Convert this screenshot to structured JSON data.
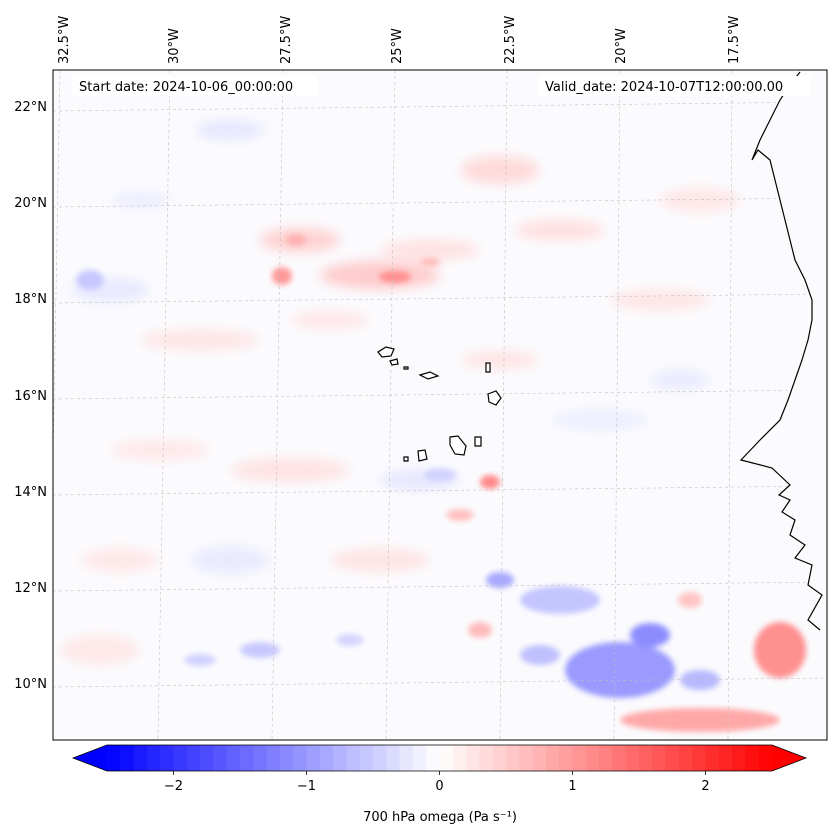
{
  "map": {
    "annotations": {
      "start_date": "Start date: 2024-10-06_00:00:00",
      "valid_date": "Valid_date: 2024-10-07T12:00:00.00"
    },
    "longitude_labels": [
      "32.5°W",
      "30°W",
      "27.5°W",
      "25°W",
      "22.5°W",
      "20°W",
      "17.5°W"
    ],
    "latitude_labels": [
      "22°N",
      "20°N",
      "18°N",
      "16°N",
      "14°N",
      "12°N",
      "10°N"
    ],
    "field": "700 hPa omega",
    "colormap": "bwr",
    "features": [
      "Cape Verde islands",
      "West African coastline"
    ]
  },
  "colorbar": {
    "label": "700 hPa omega (Pa s⁻¹)",
    "ticks": [
      "−2",
      "−1",
      "0",
      "1",
      "2"
    ],
    "tick_values": [
      -2,
      -1,
      0,
      1,
      2
    ],
    "range": [
      -2.5,
      2.5
    ],
    "extend": "both",
    "colors": {
      "min": "#0000ff",
      "mid": "#ffffff",
      "max": "#ff0000"
    }
  }
}
